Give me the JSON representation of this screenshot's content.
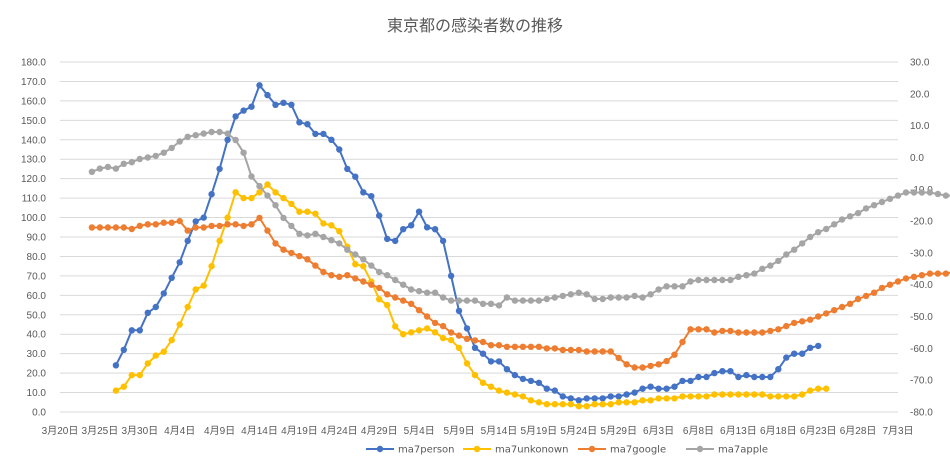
{
  "chart_data": {
    "type": "line",
    "title": "東京都の感染者数の推移",
    "xlabel": "",
    "ylabel": "",
    "x_range": [
      "2020-03-20",
      "2020-07-03"
    ],
    "x_ticks": [
      "3月20日",
      "3月25日",
      "3月30日",
      "4月4日",
      "4月9日",
      "4月14日",
      "4月19日",
      "4月24日",
      "4月29日",
      "5月4日",
      "5月9日",
      "5月14日",
      "5月19日",
      "5月24日",
      "5月29日",
      "6月3日",
      "6月8日",
      "6月13日",
      "6月18日",
      "6月23日",
      "6月28日",
      "7月3日"
    ],
    "y_left": {
      "min": 0,
      "max": 180,
      "step": 10
    },
    "y_left_ticks": [
      "0.0",
      "10.0",
      "20.0",
      "30.0",
      "40.0",
      "50.0",
      "60.0",
      "70.0",
      "80.0",
      "90.0",
      "100.0",
      "110.0",
      "120.0",
      "130.0",
      "140.0",
      "150.0",
      "160.0",
      "170.0",
      "180.0"
    ],
    "y_right": {
      "min": -80,
      "max": 30,
      "step": 10
    },
    "y_right_ticks": [
      "-80.0",
      "-70.0",
      "-60.0",
      "-50.0",
      "-40.0",
      "-30.0",
      "-20.0",
      "-10.0",
      "0.0",
      "10.0",
      "20.0",
      "30.0"
    ],
    "grid": true,
    "legend_position": "bottom",
    "series": [
      {
        "name": "ma7person",
        "color": "#4472c4",
        "axis": "left",
        "start": "2020-03-27",
        "values": [
          24,
          32,
          42,
          42,
          51,
          54,
          61,
          69,
          77,
          88,
          98,
          100,
          112,
          125,
          140,
          152,
          155,
          157,
          168,
          163,
          158,
          159,
          158,
          149,
          148,
          143,
          143,
          140,
          135,
          125,
          121,
          113,
          111,
          101,
          89,
          88,
          94,
          96,
          103,
          95,
          94,
          88,
          70,
          52,
          43,
          33,
          30,
          26,
          26,
          22,
          19,
          17,
          16,
          15,
          12,
          11,
          8,
          7,
          6,
          7,
          7,
          7,
          8,
          8,
          9,
          10,
          12,
          13,
          12,
          12,
          13,
          16,
          16,
          18,
          18,
          20,
          21,
          21,
          18,
          19,
          18,
          18,
          18,
          22,
          28,
          30,
          30,
          33,
          34
        ]
      },
      {
        "name": "ma7unkonown",
        "color": "#ffc000",
        "axis": "left",
        "start": "2020-03-27",
        "values": [
          11,
          13,
          19,
          19,
          25,
          29,
          31,
          37,
          45,
          54,
          63,
          65,
          75,
          88,
          100,
          113,
          110,
          110,
          113,
          117,
          113,
          110,
          107,
          103,
          103,
          102,
          97,
          96,
          93,
          85,
          76,
          75,
          67,
          58,
          55,
          44,
          40,
          41,
          42,
          43,
          41,
          38,
          37,
          33,
          25,
          19,
          15,
          13,
          11,
          10,
          9,
          8,
          6,
          5,
          4,
          4,
          4,
          4,
          3,
          3,
          4,
          4,
          4,
          5,
          5,
          5,
          6,
          6,
          7,
          7,
          7,
          8,
          8,
          8,
          8,
          9,
          9,
          9,
          9,
          9,
          9,
          9,
          8,
          8,
          8,
          8,
          9,
          11,
          12,
          12
        ]
      },
      {
        "name": "ma7google",
        "color": "#ed7d31",
        "axis": "right",
        "start": "2020-03-24",
        "values": [
          -22,
          -22,
          -22,
          -22,
          -22,
          -22.5,
          -21.5,
          -21,
          -21,
          -20.5,
          -20.5,
          -20,
          -23,
          -22,
          -22,
          -21.5,
          -21.5,
          -21,
          -21,
          -21.5,
          -21,
          -19,
          -23,
          -27,
          -29,
          -30,
          -31,
          -32,
          -34,
          -36,
          -37,
          -37.5,
          -37,
          -38,
          -39,
          -40,
          -41,
          -43,
          -44,
          -45,
          -46,
          -48,
          -50,
          -52,
          -53,
          -55,
          -56,
          -57,
          -57.5,
          -58,
          -59,
          -59,
          -59.5,
          -59.5,
          -59.5,
          -59.5,
          -59.5,
          -60,
          -60,
          -60.5,
          -60.5,
          -60.5,
          -61,
          -61,
          -61,
          -61,
          -63,
          -65,
          -66,
          -66,
          -65.5,
          -65,
          -64,
          -62,
          -58,
          -54,
          -54,
          -54,
          -55,
          -54.5,
          -54.5,
          -55,
          -55,
          -55,
          -55,
          -54.5,
          -54,
          -53,
          -52,
          -51.5,
          -51,
          -50,
          -49,
          -48,
          -47,
          -46,
          -44.5,
          -43.5,
          -42.5,
          -41,
          -40,
          -39,
          -38,
          -37.5,
          -37,
          -36.5,
          -36.5,
          -36.5,
          -36,
          -36.5,
          -37
        ]
      },
      {
        "name": "ma7apple",
        "color": "#a5a5a5",
        "axis": "right",
        "start": "2020-03-24",
        "values": [
          -4.5,
          -3.5,
          -3,
          -3.5,
          -2,
          -1.5,
          -0.5,
          0,
          0.5,
          1.5,
          3,
          5,
          6.5,
          7,
          7.5,
          8,
          8,
          7.5,
          5.5,
          1.5,
          -6,
          -9,
          -12,
          -15,
          -19,
          -21.5,
          -24,
          -24.5,
          -24,
          -25,
          -26,
          -27,
          -29,
          -30.5,
          -32,
          -34,
          -36,
          -37,
          -38.5,
          -40,
          -41.5,
          -42,
          -42.5,
          -42.5,
          -44,
          -45,
          -45,
          -45,
          -45,
          -46,
          -46,
          -46.5,
          -44,
          -45,
          -45,
          -45,
          -45,
          -44.5,
          -44,
          -43.5,
          -43,
          -42.5,
          -43,
          -44.5,
          -44.5,
          -44,
          -44,
          -44,
          -43.5,
          -44,
          -43,
          -41.5,
          -40.5,
          -40.5,
          -40.5,
          -39,
          -38.5,
          -38.5,
          -38.5,
          -38.5,
          -38.5,
          -37.5,
          -37,
          -36.5,
          -35,
          -34,
          -32.5,
          -30.5,
          -29,
          -27,
          -25,
          -23.5,
          -22.5,
          -21,
          -19.5,
          -18.5,
          -17.5,
          -16,
          -15,
          -14,
          -13,
          -12,
          -11,
          -11,
          -11,
          -11,
          -11.5,
          -12,
          -12,
          -11.5,
          -11,
          -10
        ]
      }
    ]
  }
}
